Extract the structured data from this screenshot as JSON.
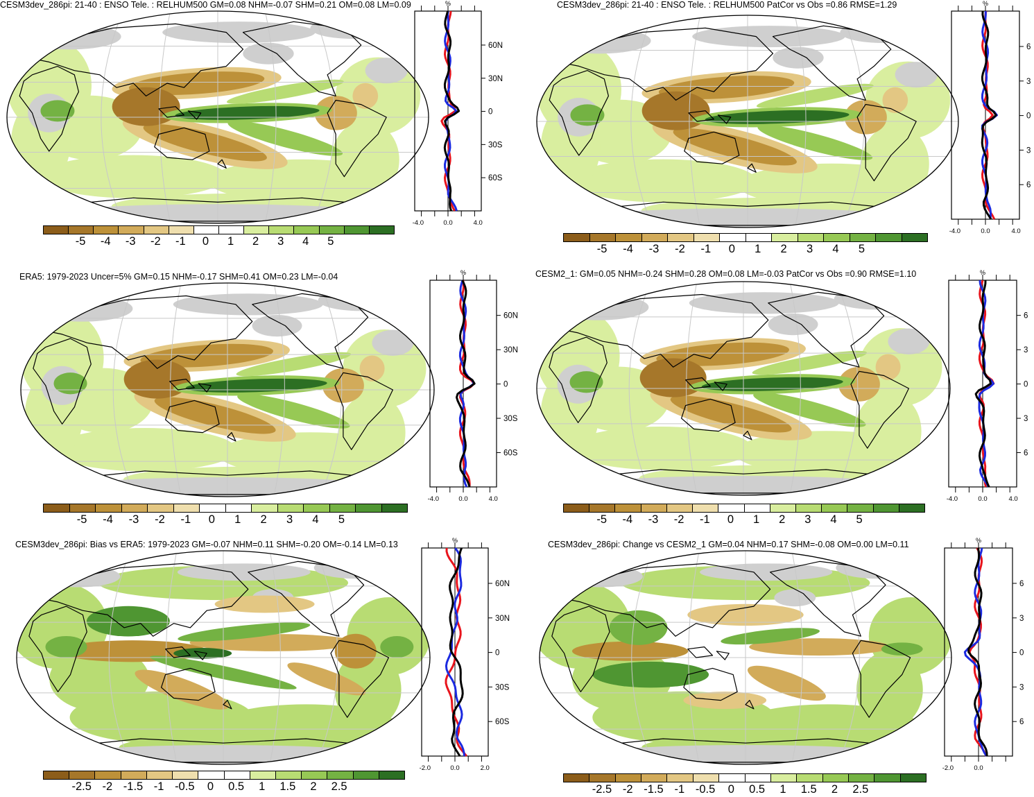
{
  "colors": {
    "scale": [
      "#8c5d1a",
      "#a6772a",
      "#bd9139",
      "#d2ab5a",
      "#e3c783",
      "#efdfae",
      "#ffffff",
      "#ffffff",
      "#d9ee9f",
      "#b8dc73",
      "#97c955",
      "#74b243",
      "#4f9632",
      "#2c6f23"
    ],
    "land": "#000000",
    "missing": "#cfcfcf",
    "grid": "#c8c8c8",
    "line_model": "#e8141c",
    "line_obs": "#1b2ae0",
    "line_mean": "#000000"
  },
  "panels": [
    {
      "id": "p1",
      "title": "CESM3dev_286pi: 21-40 : ENSO Tele. : RELHUM500 GM=0.08 NHM=-0.07 SHM=0.21 OM=0.08 LM=0.09",
      "pattern": "enso",
      "colorbar_labels": [
        "-5",
        "-4",
        "-3",
        "-2",
        "-1",
        "0",
        "1",
        "2",
        "3",
        "4",
        "5"
      ],
      "zonal": {
        "unit": "%",
        "lat_labels": [
          "60N",
          "30N",
          "0",
          "30S",
          "60S"
        ],
        "x_labels": [
          "-4.0",
          "0.0",
          "4.0"
        ]
      }
    },
    {
      "id": "p2",
      "title": "CESM3dev_286pi: 21-40 : ENSO Tele. : RELHUM500 PatCor vs Obs =0.86 RMSE=1.29",
      "pattern": "enso",
      "colorbar_labels": [
        "-5",
        "-4",
        "-3",
        "-2",
        "-1",
        "0",
        "1",
        "2",
        "3",
        "4",
        "5"
      ],
      "zonal": {
        "unit": "%",
        "lat_labels": [
          "6",
          "3",
          "0",
          "3",
          "6"
        ],
        "x_labels": [
          "-4.0",
          "0.0",
          "4.0"
        ]
      }
    },
    {
      "id": "p3",
      "title": "ERA5: 1979-2023 Uncer=5% GM=0.15 NHM=-0.17 SHM=0.41 OM=0.23 LM=-0.04",
      "pattern": "enso",
      "colorbar_labels": [
        "-5",
        "-4",
        "-3",
        "-2",
        "-1",
        "0",
        "1",
        "2",
        "3",
        "4",
        "5"
      ],
      "zonal": {
        "unit": "%",
        "lat_labels": [
          "60N",
          "30N",
          "0",
          "30S",
          "60S"
        ],
        "x_labels": [
          "-4.0",
          "0.0",
          "4.0"
        ]
      }
    },
    {
      "id": "p4",
      "title": "CESM2_1: GM=0.05 NHM=-0.24 SHM=0.28 OM=0.08 LM=-0.03 PatCor vs Obs =0.90 RMSE=1.10",
      "pattern": "enso",
      "colorbar_labels": [
        "-5",
        "-4",
        "-3",
        "-2",
        "-1",
        "0",
        "1",
        "2",
        "3",
        "4",
        "5"
      ],
      "zonal": {
        "unit": "%",
        "lat_labels": [
          "6",
          "3",
          "0",
          "3",
          "6"
        ],
        "x_labels": [
          "-4.0",
          "0.0",
          "4.0"
        ]
      }
    },
    {
      "id": "p5",
      "title": "CESM3dev_286pi: Bias vs ERA5: 1979-2023 GM=-0.07 NHM=0.11 SHM=-0.20 OM=-0.14 LM=0.13",
      "pattern": "bias",
      "colorbar_labels": [
        "-2.5",
        "-2",
        "-1.5",
        "-1",
        "-0.5",
        "0",
        "0.5",
        "1",
        "1.5",
        "2",
        "2.5"
      ],
      "zonal": {
        "unit": "%",
        "lat_labels": [
          "60N",
          "30N",
          "0",
          "30S",
          "60S"
        ],
        "x_labels": [
          "-2.0",
          "0.0",
          "2.0"
        ]
      }
    },
    {
      "id": "p6",
      "title": "CESM3dev_286pi: Change vs CESM2_1 GM=0.04 NHM=0.17 SHM=-0.08 OM=0.00 LM=0.11",
      "pattern": "change",
      "colorbar_labels": [
        "-2.5",
        "-2",
        "-1.5",
        "-1",
        "-0.5",
        "0",
        "0.5",
        "1",
        "1.5",
        "2",
        "2.5"
      ],
      "zonal": {
        "unit": "%",
        "lat_labels": [
          "6",
          "3",
          "0",
          "3",
          "6"
        ],
        "x_labels": [
          "-2.0",
          "0.0"
        ]
      }
    }
  ]
}
